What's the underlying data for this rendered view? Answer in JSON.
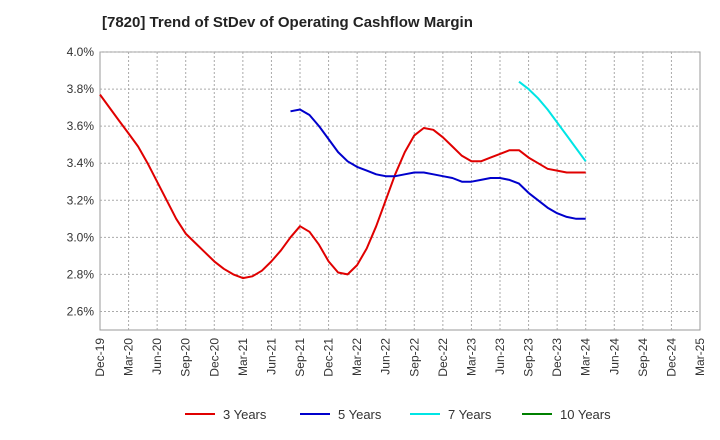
{
  "chart_data": {
    "type": "line",
    "title": "[7820]  Trend of StDev of Operating Cashflow Margin",
    "xlabel": "",
    "ylabel": "",
    "ylim": [
      2.5,
      4.0
    ],
    "y_ticks": [
      "4.0%",
      "3.8%",
      "3.6%",
      "3.4%",
      "3.2%",
      "3.0%",
      "2.8%",
      "2.6%"
    ],
    "y_tick_values": [
      4.0,
      3.8,
      3.6,
      3.4,
      3.2,
      3.0,
      2.8,
      2.6
    ],
    "x_ticks": [
      "Dec-19",
      "Mar-20",
      "Jun-20",
      "Sep-20",
      "Dec-20",
      "Mar-21",
      "Jun-21",
      "Sep-21",
      "Dec-21",
      "Mar-22",
      "Jun-22",
      "Sep-22",
      "Dec-22",
      "Mar-23",
      "Jun-23",
      "Sep-23",
      "Dec-23",
      "Mar-24",
      "Jun-24",
      "Sep-24",
      "Dec-24",
      "Mar-25"
    ],
    "grid": true,
    "legend_position": "bottom",
    "series": [
      {
        "name": "3 Years",
        "color": "#e00000",
        "values": [
          [
            "Dec-19",
            3.77
          ],
          [
            "Jan-20",
            3.7
          ],
          [
            "Feb-20",
            3.63
          ],
          [
            "Mar-20",
            3.56
          ],
          [
            "Apr-20",
            3.49
          ],
          [
            "May-20",
            3.4
          ],
          [
            "Jun-20",
            3.3
          ],
          [
            "Jul-20",
            3.2
          ],
          [
            "Aug-20",
            3.1
          ],
          [
            "Sep-20",
            3.02
          ],
          [
            "Oct-20",
            2.97
          ],
          [
            "Nov-20",
            2.92
          ],
          [
            "Dec-20",
            2.87
          ],
          [
            "Jan-21",
            2.83
          ],
          [
            "Feb-21",
            2.8
          ],
          [
            "Mar-21",
            2.78
          ],
          [
            "Apr-21",
            2.79
          ],
          [
            "May-21",
            2.82
          ],
          [
            "Jun-21",
            2.87
          ],
          [
            "Jul-21",
            2.93
          ],
          [
            "Aug-21",
            3.0
          ],
          [
            "Sep-21",
            3.06
          ],
          [
            "Oct-21",
            3.03
          ],
          [
            "Nov-21",
            2.96
          ],
          [
            "Dec-21",
            2.87
          ],
          [
            "Jan-22",
            2.81
          ],
          [
            "Feb-22",
            2.8
          ],
          [
            "Mar-22",
            2.85
          ],
          [
            "Apr-22",
            2.94
          ],
          [
            "May-22",
            3.06
          ],
          [
            "Jun-22",
            3.2
          ],
          [
            "Jul-22",
            3.34
          ],
          [
            "Aug-22",
            3.46
          ],
          [
            "Sep-22",
            3.55
          ],
          [
            "Oct-22",
            3.59
          ],
          [
            "Nov-22",
            3.58
          ],
          [
            "Dec-22",
            3.54
          ],
          [
            "Jan-23",
            3.49
          ],
          [
            "Feb-23",
            3.44
          ],
          [
            "Mar-23",
            3.41
          ],
          [
            "Apr-23",
            3.41
          ],
          [
            "May-23",
            3.43
          ],
          [
            "Jun-23",
            3.45
          ],
          [
            "Jul-23",
            3.47
          ],
          [
            "Aug-23",
            3.47
          ],
          [
            "Sep-23",
            3.43
          ],
          [
            "Oct-23",
            3.4
          ],
          [
            "Nov-23",
            3.37
          ],
          [
            "Dec-23",
            3.36
          ],
          [
            "Jan-24",
            3.35
          ],
          [
            "Feb-24",
            3.35
          ],
          [
            "Mar-24",
            3.35
          ]
        ]
      },
      {
        "name": "5 Years",
        "color": "#0000cc",
        "values": [
          [
            "Aug-21",
            3.68
          ],
          [
            "Sep-21",
            3.69
          ],
          [
            "Oct-21",
            3.66
          ],
          [
            "Nov-21",
            3.6
          ],
          [
            "Dec-21",
            3.53
          ],
          [
            "Jan-22",
            3.46
          ],
          [
            "Feb-22",
            3.41
          ],
          [
            "Mar-22",
            3.38
          ],
          [
            "Apr-22",
            3.36
          ],
          [
            "May-22",
            3.34
          ],
          [
            "Jun-22",
            3.33
          ],
          [
            "Jul-22",
            3.33
          ],
          [
            "Aug-22",
            3.34
          ],
          [
            "Sep-22",
            3.35
          ],
          [
            "Oct-22",
            3.35
          ],
          [
            "Nov-22",
            3.34
          ],
          [
            "Dec-22",
            3.33
          ],
          [
            "Jan-23",
            3.32
          ],
          [
            "Feb-23",
            3.3
          ],
          [
            "Mar-23",
            3.3
          ],
          [
            "Apr-23",
            3.31
          ],
          [
            "May-23",
            3.32
          ],
          [
            "Jun-23",
            3.32
          ],
          [
            "Jul-23",
            3.31
          ],
          [
            "Aug-23",
            3.29
          ],
          [
            "Sep-23",
            3.24
          ],
          [
            "Oct-23",
            3.2
          ],
          [
            "Nov-23",
            3.16
          ],
          [
            "Dec-23",
            3.13
          ],
          [
            "Jan-24",
            3.11
          ],
          [
            "Feb-24",
            3.1
          ],
          [
            "Mar-24",
            3.1
          ]
        ]
      },
      {
        "name": "7 Years",
        "color": "#00e5e5",
        "values": [
          [
            "Aug-23",
            3.84
          ],
          [
            "Sep-23",
            3.8
          ],
          [
            "Oct-23",
            3.75
          ],
          [
            "Nov-23",
            3.69
          ],
          [
            "Dec-23",
            3.62
          ],
          [
            "Jan-24",
            3.55
          ],
          [
            "Feb-24",
            3.48
          ],
          [
            "Mar-24",
            3.41
          ]
        ]
      },
      {
        "name": "10 Years",
        "color": "#008000",
        "values": []
      }
    ]
  }
}
